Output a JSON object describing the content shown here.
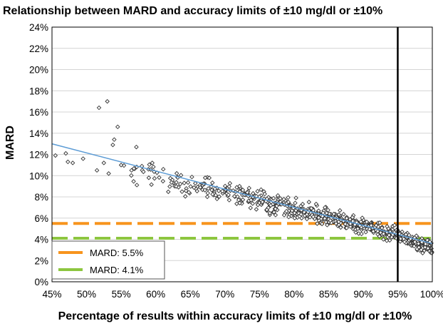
{
  "chart_data": {
    "type": "scatter",
    "title": "Relationship between MARD and accuracy limits of ±10 mg/dl or ±10%",
    "xlabel": "Percentage of results within accuracy limits of ±10 mg/dl or ±10%",
    "ylabel": "MARD",
    "xlim": [
      45,
      100
    ],
    "ylim": [
      0,
      24
    ],
    "x_ticks": [
      45,
      50,
      55,
      60,
      65,
      70,
      75,
      80,
      85,
      90,
      95,
      100
    ],
    "y_ticks": [
      0,
      2,
      4,
      6,
      8,
      10,
      12,
      14,
      16,
      18,
      20,
      22,
      24
    ],
    "x_tick_labels": [
      "45%",
      "50%",
      "55%",
      "60%",
      "65%",
      "70%",
      "75%",
      "80%",
      "85%",
      "90%",
      "95%",
      "100%"
    ],
    "y_tick_labels": [
      "0%",
      "2%",
      "4%",
      "6%",
      "8%",
      "10%",
      "12%",
      "14%",
      "16%",
      "18%",
      "20%",
      "22%",
      "24%"
    ],
    "grid": "horizontal",
    "trend_line": {
      "name": "trend",
      "color": "#5b9bd5",
      "x": [
        45,
        100
      ],
      "y": [
        13.0,
        3.6
      ]
    },
    "vertical_line": {
      "x": 95,
      "color": "#000000"
    },
    "reference_lines": [
      {
        "label": "MARD: 5.5%",
        "y": 5.5,
        "color": "#f7941d",
        "style": "dashed"
      },
      {
        "label": "MARD: 4.1%",
        "y": 4.1,
        "color": "#8dc63f",
        "style": "dashed"
      }
    ],
    "legend_position": "bottom-left",
    "scatter_outliers": [
      {
        "x": 45.5,
        "y": 11.9
      },
      {
        "x": 47,
        "y": 12.1
      },
      {
        "x": 47.3,
        "y": 11.3
      },
      {
        "x": 48,
        "y": 11.2
      },
      {
        "x": 49.5,
        "y": 11.6
      },
      {
        "x": 51.5,
        "y": 10.5
      },
      {
        "x": 51.8,
        "y": 16.4
      },
      {
        "x": 52.5,
        "y": 11.2
      },
      {
        "x": 53,
        "y": 17.0
      },
      {
        "x": 53.2,
        "y": 10.2
      },
      {
        "x": 53.8,
        "y": 12.9
      },
      {
        "x": 54,
        "y": 13.4
      },
      {
        "x": 54.5,
        "y": 14.6
      },
      {
        "x": 55,
        "y": 11.0
      },
      {
        "x": 56.5,
        "y": 10.5
      },
      {
        "x": 57.2,
        "y": 12.7
      },
      {
        "x": 58,
        "y": 10.9
      },
      {
        "x": 59,
        "y": 9.8
      },
      {
        "x": 59.5,
        "y": 11.2
      }
    ],
    "scatter_band": {
      "x_range": [
        55,
        100
      ],
      "count": 700,
      "center_at_x_min": 10.7,
      "center_at_x_max": 3.7,
      "spread": [
        1.4,
        0.7
      ]
    }
  }
}
